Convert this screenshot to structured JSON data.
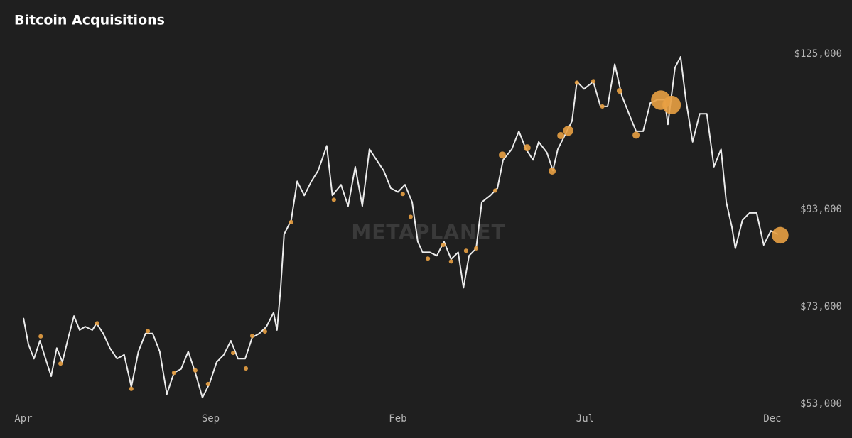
{
  "chart_data": {
    "type": "line",
    "title": "Bitcoin Acquisitions",
    "watermark": "METAPLANET",
    "x": [
      0,
      0.13,
      0.28,
      0.44,
      0.59,
      0.74,
      0.89,
      1.04,
      1.2,
      1.35,
      1.5,
      1.65,
      1.84,
      1.95,
      2.13,
      2.31,
      2.5,
      2.69,
      2.88,
      3.07,
      3.26,
      3.45,
      3.64,
      3.83,
      4.02,
      4.21,
      4.4,
      4.59,
      4.78,
      4.97,
      5.16,
      5.35,
      5.54,
      5.73,
      5.92,
      6.11,
      6.3,
      6.49,
      6.68,
      6.77,
      6.87,
      6.96,
      7.15,
      7.31,
      7.5,
      7.69,
      7.87,
      8.1,
      8.25,
      8.48,
      8.67,
      8.86,
      9.05,
      9.24,
      9.43,
      9.62,
      9.81,
      10.0,
      10.19,
      10.38,
      10.53,
      10.66,
      10.85,
      11.04,
      11.23,
      11.42,
      11.61,
      11.75,
      11.9,
      12.09,
      12.24,
      12.47,
      12.66,
      12.81,
      13.04,
      13.23,
      13.42,
      13.61,
      13.76,
      13.98,
      14.14,
      14.27,
      14.46,
      14.65,
      14.78,
      14.97,
      15.22,
      15.41,
      15.6,
      15.79,
      15.98,
      16.17,
      16.36,
      16.55,
      16.74,
      16.93,
      17.12,
      17.21,
      17.4,
      17.55,
      17.69,
      17.87,
      18.06,
      18.25,
      18.44,
      18.63,
      18.77,
      18.92,
      19.01,
      19.2,
      19.39,
      19.58,
      19.77,
      19.96,
      20.15
    ],
    "series": [
      {
        "color": "#ececec",
        "values": [
          70700,
          65300,
          62300,
          66000,
          62300,
          58700,
          64500,
          61600,
          66700,
          71100,
          68200,
          68900,
          68200,
          69600,
          67500,
          64500,
          62300,
          63100,
          56500,
          63800,
          67500,
          67500,
          63800,
          55000,
          59400,
          60200,
          63800,
          59400,
          54300,
          57200,
          61600,
          63100,
          66000,
          62300,
          62300,
          66700,
          67500,
          68900,
          71800,
          68200,
          76900,
          87900,
          90800,
          98800,
          95900,
          98800,
          101000,
          106100,
          95900,
          98100,
          93700,
          101800,
          93700,
          105400,
          103200,
          101000,
          97400,
          96600,
          98100,
          94500,
          86400,
          84200,
          84200,
          83500,
          86400,
          82800,
          84200,
          76900,
          83500,
          85000,
          94500,
          95900,
          97400,
          103200,
          105400,
          109100,
          105400,
          103200,
          106900,
          104700,
          101000,
          105400,
          108300,
          111200,
          119300,
          117800,
          119300,
          114200,
          114200,
          122900,
          116400,
          112700,
          109100,
          109100,
          114900,
          115600,
          115600,
          110500,
          122200,
          124400,
          115600,
          106900,
          112700,
          112700,
          101800,
          105400,
          94500,
          89400,
          85000,
          90800,
          92300,
          92300,
          85700,
          88600,
          87900
        ]
      }
    ],
    "acquisitions": {
      "color": "#e8a043",
      "x": [
        0.46,
        0.99,
        1.97,
        2.88,
        3.32,
        4.02,
        4.59,
        4.93,
        5.6,
        5.94,
        6.11,
        6.45,
        7.15,
        8.29,
        10.13,
        10.34,
        10.8,
        11.21,
        11.42,
        11.82,
        12.09,
        12.6,
        12.79,
        13.45,
        14.12,
        14.35,
        14.55,
        14.78,
        15.22,
        15.46,
        15.92,
        16.36,
        17.02,
        17.31,
        20.21
      ],
      "values": [
        66900,
        61300,
        69600,
        56100,
        68000,
        59400,
        59900,
        57100,
        63500,
        60300,
        67000,
        67900,
        90400,
        95000,
        96200,
        91500,
        82900,
        85700,
        82300,
        84500,
        85000,
        96900,
        104200,
        105700,
        100900,
        108200,
        109200,
        119100,
        119400,
        114200,
        117400,
        108300,
        115500,
        114500,
        87700
      ],
      "sizes": [
        150,
        150,
        150,
        150,
        150,
        150,
        150,
        150,
        150,
        150,
        150,
        150,
        150,
        150,
        150,
        150,
        150,
        150,
        150,
        150,
        150,
        150,
        400,
        400,
        400,
        400,
        800,
        150,
        150,
        150,
        250,
        400,
        3000,
        2700,
        2200
      ]
    },
    "xlim": [
      0,
      20.4
    ],
    "xticks": [
      {
        "value": 0,
        "label": "Apr"
      },
      {
        "value": 5,
        "label": "Sep"
      },
      {
        "value": 10,
        "label": "Feb"
      },
      {
        "value": 15,
        "label": "Jul"
      },
      {
        "value": 20,
        "label": "Dec"
      }
    ],
    "ylim": [
      53000,
      125000
    ],
    "yticks": [
      {
        "value": 53000,
        "label": "$53,000"
      },
      {
        "value": 73000,
        "label": "$73,000"
      },
      {
        "value": 93000,
        "label": "$93,000"
      },
      {
        "value": 125000,
        "label": "$125,000"
      }
    ],
    "grid": false
  }
}
